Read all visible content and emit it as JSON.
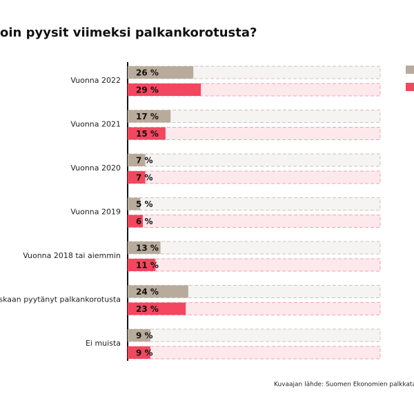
{
  "chart_data": {
    "type": "bar",
    "orientation": "horizontal",
    "title": "oin pyysit viimeksi palkankorotusta?",
    "categories": [
      "Vuonna 2022",
      "Vuonna 2021",
      "Vuonna 2020",
      "Vuonna 2019",
      "Vuonna 2018 tai aiemmin",
      "oskaan pyytänyt palkankorotusta",
      "Ei muista"
    ],
    "series": [
      {
        "color": "#b9ab9b",
        "values": [
          26,
          17,
          7,
          5,
          13,
          24,
          9
        ],
        "value_labels": [
          "26 %",
          "17 %",
          "7 %",
          "5 %",
          "13 %",
          "24 %",
          "9 %"
        ]
      },
      {
        "color": "#f2475f",
        "values": [
          29,
          15,
          7,
          6,
          11,
          23,
          9
        ],
        "value_labels": [
          "29 %",
          "15 %",
          "7 %",
          "6 %",
          "11 %",
          "23 %",
          "9 %"
        ]
      }
    ],
    "xlim": [
      0,
      100
    ],
    "source": "Kuvaajan lähde: Suomen Ekonomien palkkatasotut"
  }
}
